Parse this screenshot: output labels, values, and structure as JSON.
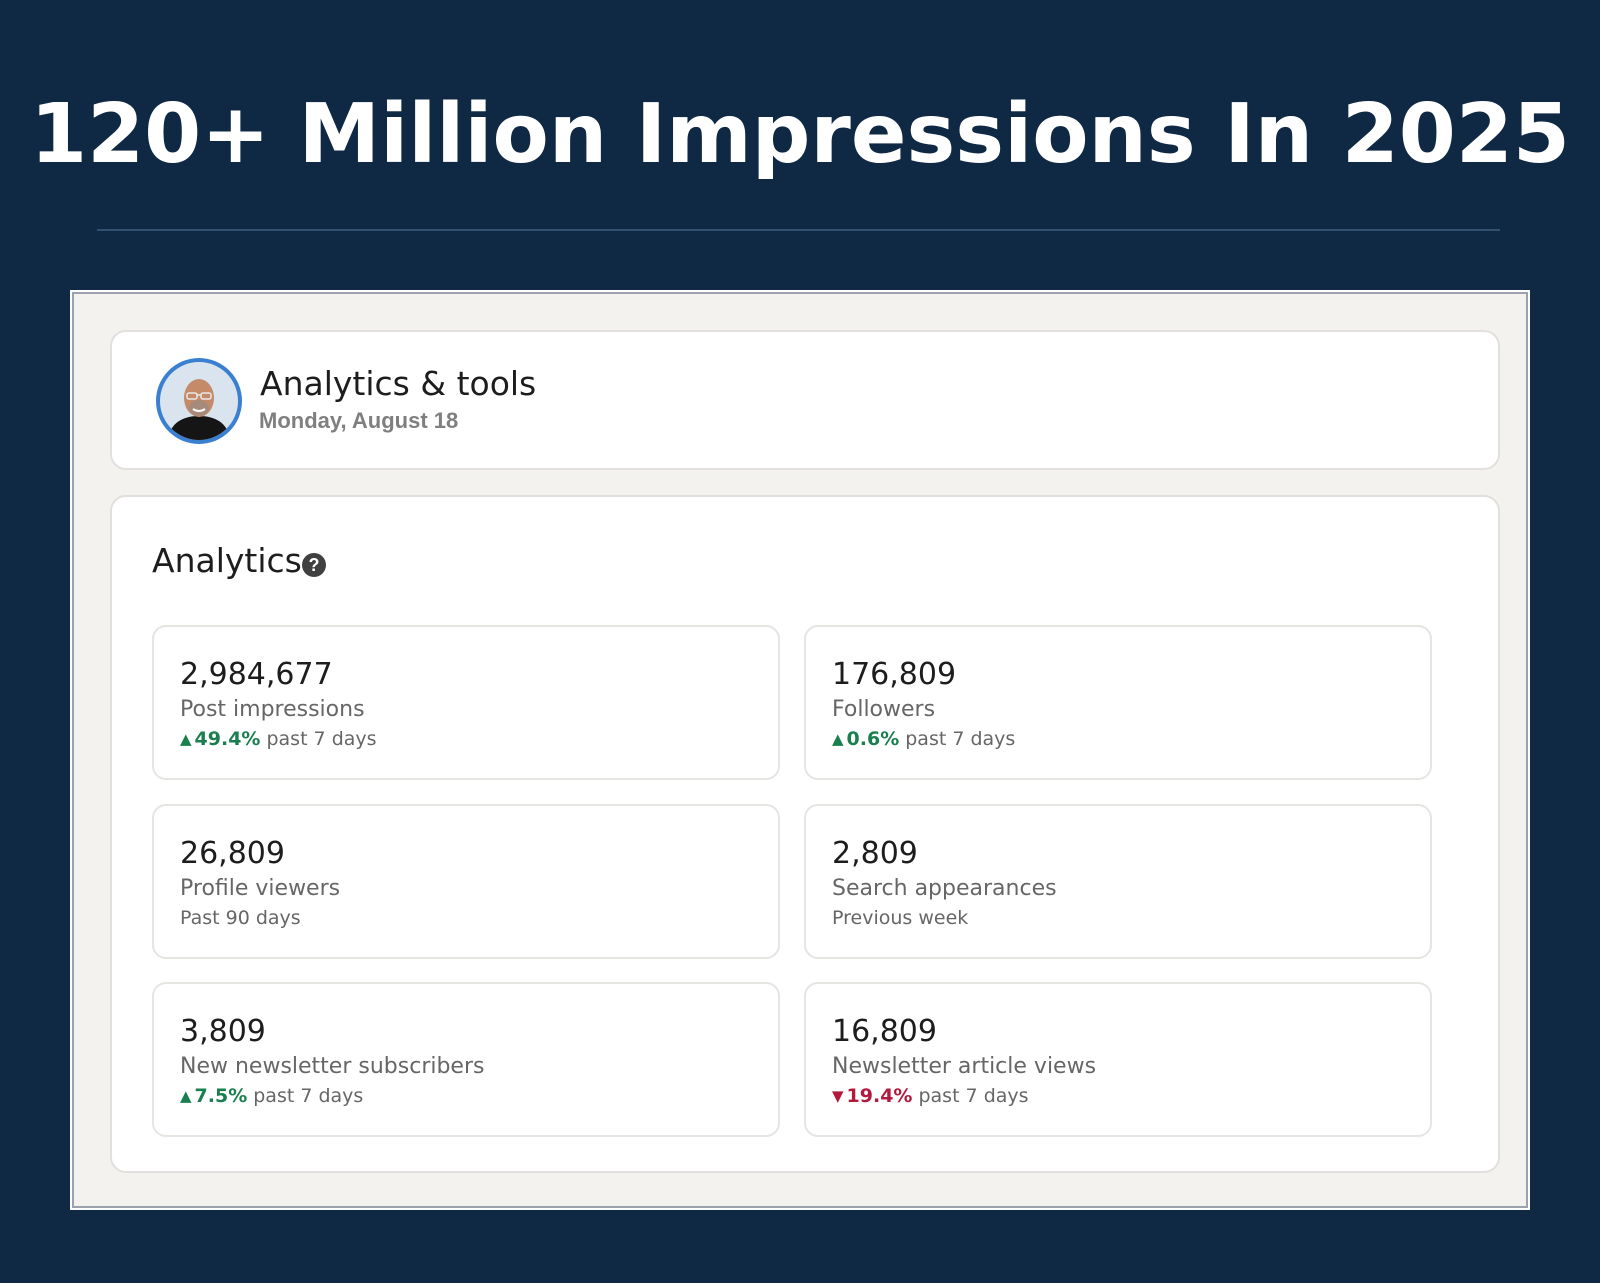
{
  "headline": "120+ Million Impressions In 2025",
  "header": {
    "title": "Analytics & tools",
    "date": "Monday, August 18"
  },
  "analytics": {
    "title": "Analytics",
    "help_icon": "question-circle-icon",
    "metrics": [
      {
        "value": "2,984,677",
        "label": "Post impressions",
        "trend": "up",
        "change": "49.4%",
        "period": "past 7 days"
      },
      {
        "value": "176,809",
        "label": "Followers",
        "trend": "up",
        "change": "0.6%",
        "period": "past 7 days"
      },
      {
        "value": "26,809",
        "label": "Profile viewers",
        "period": "Past 90 days"
      },
      {
        "value": "2,809",
        "label": "Search appearances",
        "period": "Previous week"
      },
      {
        "value": "3,809",
        "label": "New newsletter subscribers",
        "trend": "up",
        "change": "7.5%",
        "period": "past 7 days"
      },
      {
        "value": "16,809",
        "label": "Newsletter article views",
        "trend": "down",
        "change": "19.4%",
        "period": "past 7 days"
      }
    ]
  },
  "colors": {
    "background": "#0f2844",
    "trend_up": "#1a7f4e",
    "trend_down": "#b3193d"
  }
}
